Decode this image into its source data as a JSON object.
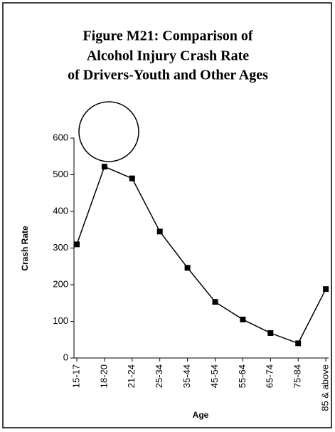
{
  "chart_data": {
    "type": "line",
    "title": [
      "Figure M21: Comparison of",
      "Alcohol Injury Crash Rate",
      "of Drivers-Youth and Other Ages"
    ],
    "x_label": "Age",
    "y_label": "Crash Rate",
    "categories": [
      "15-17",
      "18-20",
      "21-24",
      "25-34",
      "35-44",
      "45-54",
      "55-64",
      "65-74",
      "75-84",
      "85 & above"
    ],
    "values": [
      310,
      522,
      490,
      345,
      246,
      153,
      105,
      68,
      40,
      188
    ],
    "color": "#000000",
    "ylim": [
      0,
      600
    ],
    "yticks": [
      0,
      100,
      200,
      300,
      400,
      500,
      600
    ],
    "grid": false
  }
}
